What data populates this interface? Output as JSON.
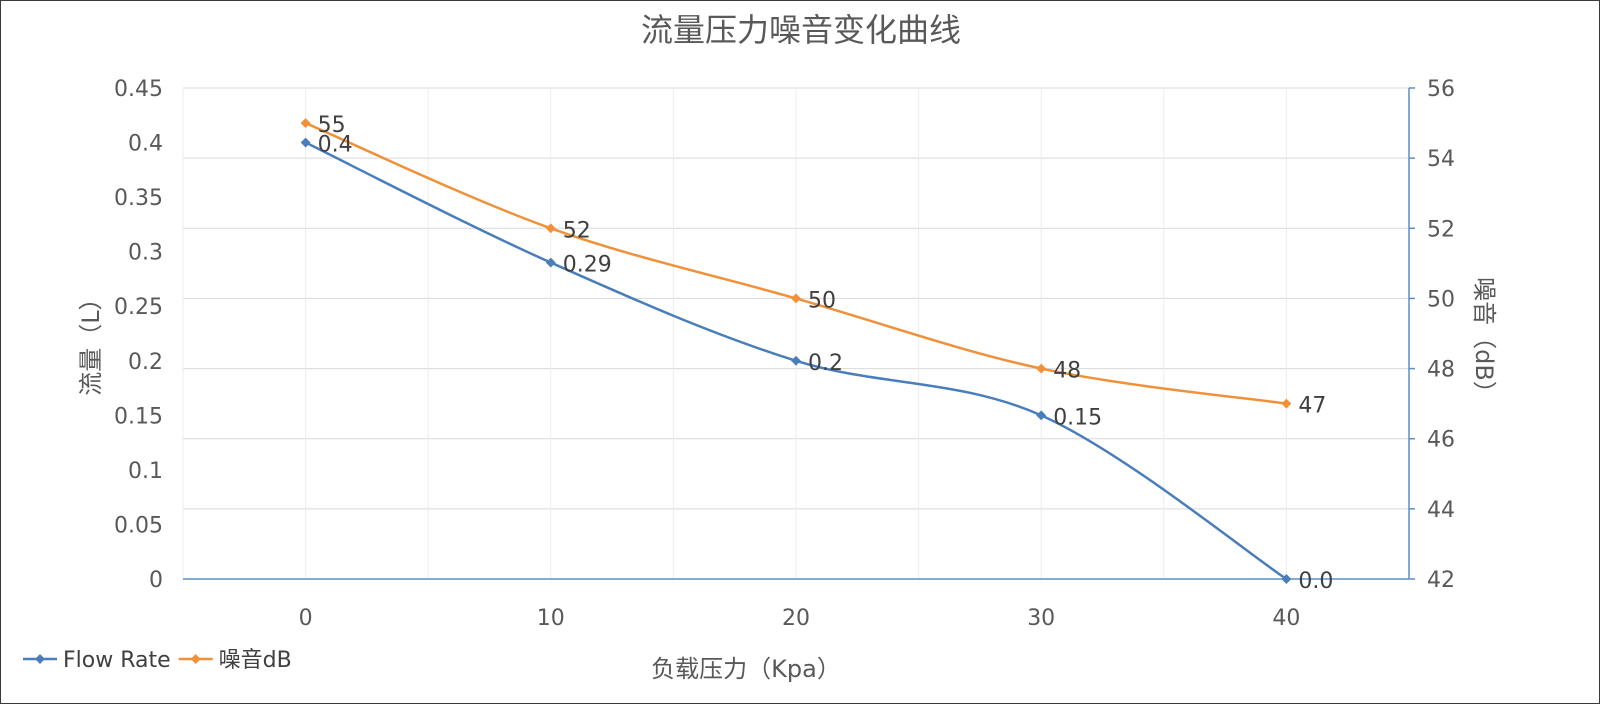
{
  "chart_data": {
    "type": "line",
    "title": "流量压力噪音变化曲线",
    "xlabel": "负载压力（Kpa）",
    "ylabel_left": "流量（L）",
    "ylabel_right": "噪音（dB）",
    "x": [
      0,
      10,
      20,
      30,
      40
    ],
    "x_ticks": [
      "0",
      "10",
      "20",
      "30",
      "40"
    ],
    "xlim": [
      -5,
      45
    ],
    "ylim_left": [
      0,
      0.45
    ],
    "ylim_right": [
      42,
      56
    ],
    "y_left_ticks": [
      "0",
      "0.05",
      "0.1",
      "0.15",
      "0.2",
      "0.25",
      "0.3",
      "0.35",
      "0.4",
      "0.45"
    ],
    "y_right_ticks": [
      "42",
      "44",
      "46",
      "48",
      "50",
      "52",
      "54",
      "56"
    ],
    "grid": true,
    "legend_position": "bottom-left",
    "series": [
      {
        "name": "Flow Rate",
        "axis": "left",
        "color": "#4a7ebb",
        "values": [
          0.4,
          0.29,
          0.2,
          0.15,
          0.0
        ],
        "labels": [
          "0.4",
          "0.29",
          "0.2",
          "0.15",
          "0.0"
        ]
      },
      {
        "name": "噪音dB",
        "axis": "right",
        "color": "#f0913a",
        "values": [
          55,
          52,
          50,
          48,
          47
        ],
        "labels": [
          "55",
          "52",
          "50",
          "48",
          "47"
        ]
      }
    ]
  }
}
